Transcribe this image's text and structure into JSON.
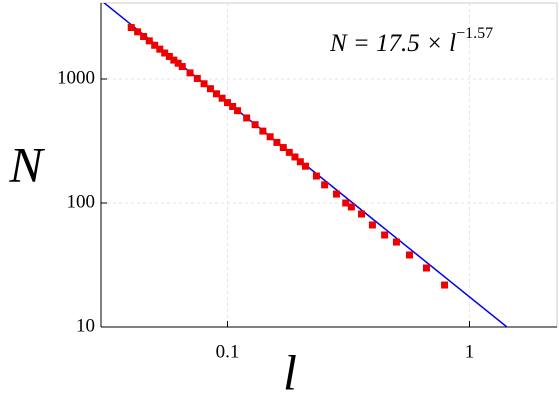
{
  "chart_data": {
    "type": "scatter",
    "x_label": "l",
    "y_label": "N",
    "x": [
      0.04,
      0.0425,
      0.045,
      0.0475,
      0.05,
      0.0525,
      0.055,
      0.0575,
      0.06,
      0.0625,
      0.065,
      0.07,
      0.075,
      0.08,
      0.085,
      0.09,
      0.095,
      0.1,
      0.105,
      0.11,
      0.12,
      0.13,
      0.14,
      0.15,
      0.16,
      0.17,
      0.18,
      0.19,
      0.2,
      0.21,
      0.233,
      0.252,
      0.282,
      0.308,
      0.325,
      0.358,
      0.397,
      0.446,
      0.499,
      0.565,
      0.664,
      0.789
    ],
    "series": [
      {
        "color": "#ee0000",
        "values": [
          2600,
          2400,
          2200,
          2030,
          1870,
          1740,
          1620,
          1520,
          1420,
          1340,
          1260,
          1120,
          1010,
          915,
          835,
          760,
          700,
          645,
          600,
          555,
          485,
          428,
          380,
          342,
          308,
          280,
          256,
          235,
          215,
          198,
          165,
          140,
          118,
          100,
          92.9,
          81.5,
          66.5,
          55.2,
          48.4,
          38.1,
          29.9,
          21.8
        ]
      }
    ],
    "fit": {
      "coefficient": 17.5,
      "exponent": -1.57,
      "color": "#0000ee",
      "label_main": "N = 17.5 × l",
      "label_exponent": "−1.57"
    },
    "xlim": [
      0.03,
      2.3
    ],
    "ylim": [
      10,
      4100
    ],
    "xticks": [
      0.1,
      1
    ],
    "yticks": [
      10,
      100,
      1000
    ],
    "log_x": true,
    "log_y": true,
    "grid": true
  }
}
